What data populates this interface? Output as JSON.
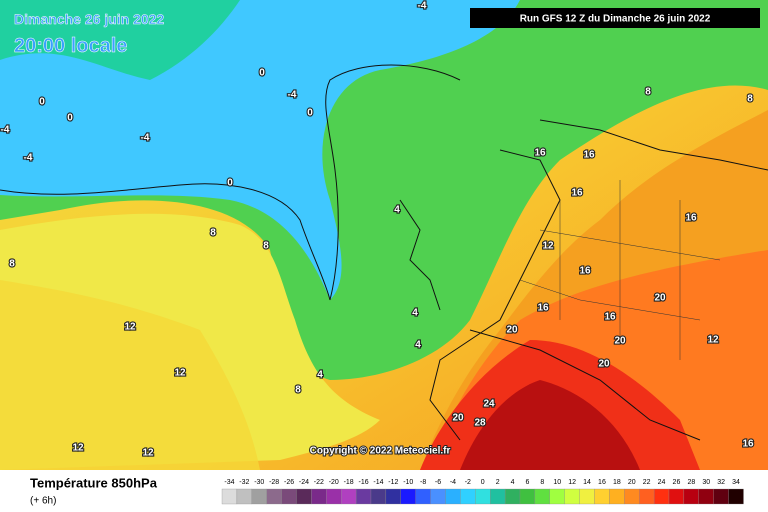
{
  "header": {
    "date": "Dimanche 26 juin 2022",
    "time": "20:00 locale",
    "run": "Run GFS 12 Z du Dimanche 26 juin 2022"
  },
  "copyright": "Copyright © 2022 Meteociel.fr",
  "legend": {
    "title": "Température 850hPa",
    "subtitle": "(+ 6h)",
    "values": [
      -34,
      -32,
      -30,
      -28,
      -26,
      -24,
      -22,
      -20,
      -18,
      -16,
      -14,
      -12,
      -10,
      -8,
      -6,
      -4,
      -2,
      0,
      2,
      4,
      6,
      8,
      10,
      12,
      14,
      16,
      18,
      20,
      22,
      24,
      26,
      28,
      30,
      32,
      34
    ],
    "colors": [
      "#dcdcdc",
      "#c0c0c0",
      "#a0a0a0",
      "#8c6a8c",
      "#7a4a7a",
      "#5a2a5a",
      "#7a2a8a",
      "#9a30a8",
      "#b040c0",
      "#6a3aa0",
      "#4a3a8a",
      "#3030a0",
      "#1a1aff",
      "#3060ff",
      "#4a90ff",
      "#2ab0ff",
      "#30d0ff",
      "#30e0e0",
      "#20c0a0",
      "#30b060",
      "#40c040",
      "#60e040",
      "#a0ff40",
      "#d0ff40",
      "#f0f040",
      "#ffd030",
      "#ffb020",
      "#ff8a20",
      "#ff6020",
      "#ff3010",
      "#e01010",
      "#b80010",
      "#900010",
      "#600010",
      "#200000"
    ]
  },
  "contour_labels": [
    "-4",
    "-4",
    "-4",
    "-4",
    "-4",
    "0",
    "0",
    "0",
    "0",
    "0",
    "4",
    "4",
    "4",
    "4",
    "8",
    "8",
    "8",
    "8",
    "8",
    "8",
    "12",
    "12",
    "12",
    "12",
    "12",
    "12",
    "16",
    "16",
    "16",
    "16",
    "16",
    "16",
    "16",
    "20",
    "20",
    "20",
    "20",
    "20",
    "24",
    "28",
    "16"
  ]
}
